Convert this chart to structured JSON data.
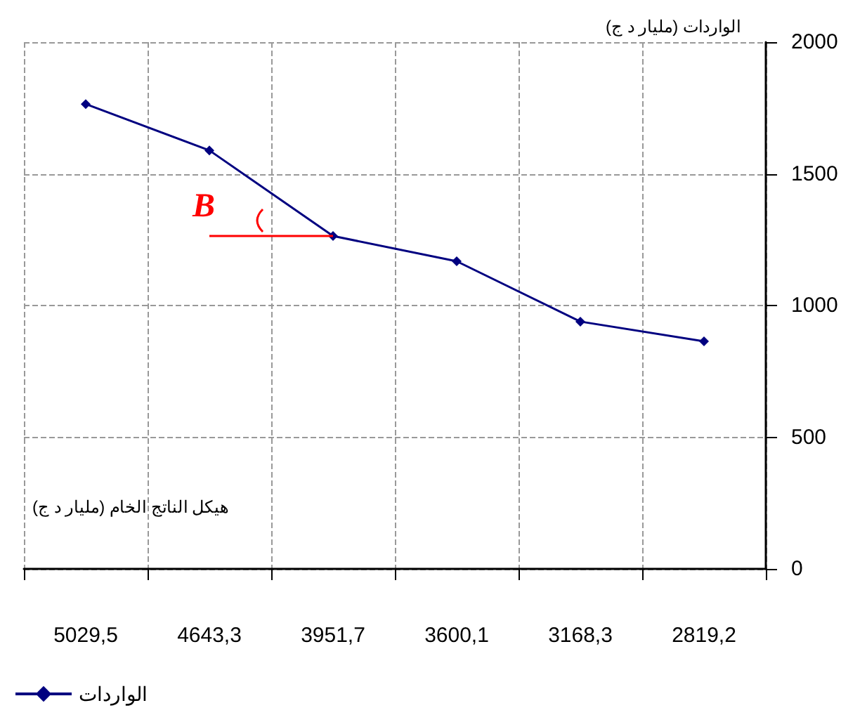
{
  "chart_data": {
    "type": "line",
    "ylabel": "الواردات (مليار د ج)",
    "xlabel": "هيكل الناتج الخام (مليار د ج)",
    "categories": [
      "5029,5",
      "4643,3",
      "3951,7",
      "3600,1",
      "3168,3",
      "2819,2"
    ],
    "series": [
      {
        "name": "الواردات",
        "color": "#000080",
        "values": [
          1765,
          1589,
          1264,
          1168,
          939,
          864
        ]
      }
    ],
    "ylim": [
      0,
      2000
    ],
    "yticks": [
      0,
      500,
      1000,
      1500,
      2000
    ],
    "grid": true,
    "legend": "bottom left",
    "marker": "diamond",
    "line_style": "solid",
    "annotations": [
      {
        "text": "B",
        "x": "3951,7",
        "y": 1264
      }
    ]
  }
}
